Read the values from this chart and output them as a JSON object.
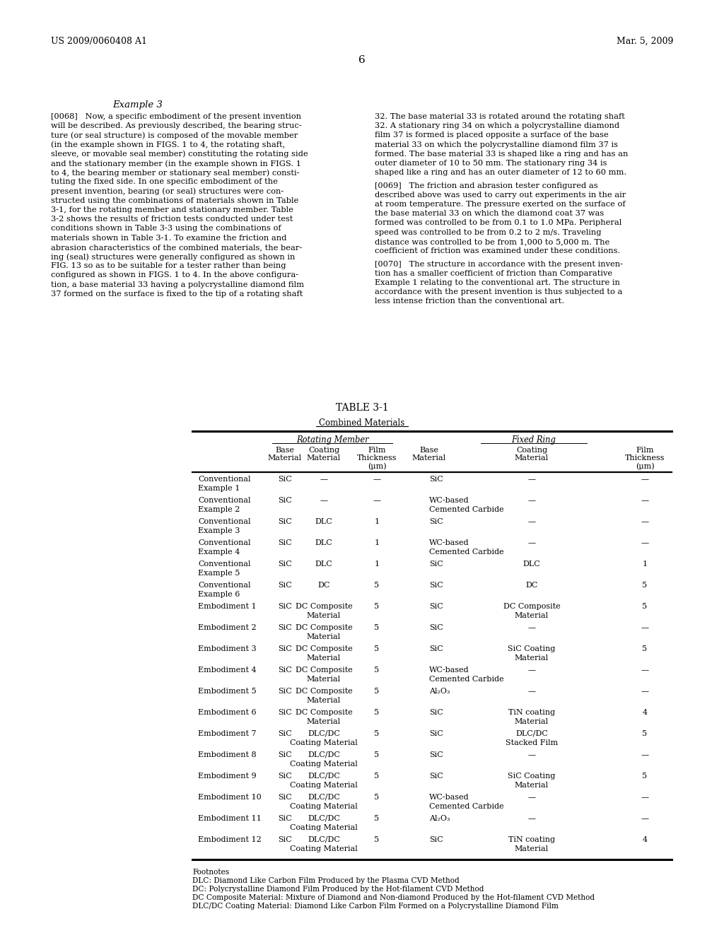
{
  "header_left": "US 2009/0060408 A1",
  "header_right": "Mar. 5, 2009",
  "page_number": "6",
  "example_title": "Example 3",
  "rows": [
    {
      "label": "Conventional\nExample 1",
      "rm_base": "SiC",
      "rm_coat": "—",
      "rm_thick": "—",
      "fr_base": "SiC",
      "fr_coat": "—",
      "fr_thick": "—"
    },
    {
      "label": "Conventional\nExample 2",
      "rm_base": "SiC",
      "rm_coat": "—",
      "rm_thick": "—",
      "fr_base": "WC-based\nCemented Carbide",
      "fr_coat": "—",
      "fr_thick": "—"
    },
    {
      "label": "Conventional\nExample 3",
      "rm_base": "SiC",
      "rm_coat": "DLC",
      "rm_thick": "1",
      "fr_base": "SiC",
      "fr_coat": "—",
      "fr_thick": "—"
    },
    {
      "label": "Conventional\nExample 4",
      "rm_base": "SiC",
      "rm_coat": "DLC",
      "rm_thick": "1",
      "fr_base": "WC-based\nCemented Carbide",
      "fr_coat": "—",
      "fr_thick": "—"
    },
    {
      "label": "Conventional\nExample 5",
      "rm_base": "SiC",
      "rm_coat": "DLC",
      "rm_thick": "1",
      "fr_base": "SiC",
      "fr_coat": "DLC",
      "fr_thick": "1"
    },
    {
      "label": "Conventional\nExample 6",
      "rm_base": "SiC",
      "rm_coat": "DC",
      "rm_thick": "5",
      "fr_base": "SiC",
      "fr_coat": "DC",
      "fr_thick": "5"
    },
    {
      "label": "Embodiment 1",
      "rm_base": "SiC",
      "rm_coat": "DC Composite\nMaterial",
      "rm_thick": "5",
      "fr_base": "SiC",
      "fr_coat": "DC Composite\nMaterial",
      "fr_thick": "5"
    },
    {
      "label": "Embodiment 2",
      "rm_base": "SiC",
      "rm_coat": "DC Composite\nMaterial",
      "rm_thick": "5",
      "fr_base": "SiC",
      "fr_coat": "—",
      "fr_thick": "—"
    },
    {
      "label": "Embodiment 3",
      "rm_base": "SiC",
      "rm_coat": "DC Composite\nMaterial",
      "rm_thick": "5",
      "fr_base": "SiC",
      "fr_coat": "SiC Coating\nMaterial",
      "fr_thick": "5"
    },
    {
      "label": "Embodiment 4",
      "rm_base": "SiC",
      "rm_coat": "DC Composite\nMaterial",
      "rm_thick": "5",
      "fr_base": "WC-based\nCemented Carbide",
      "fr_coat": "—",
      "fr_thick": "—"
    },
    {
      "label": "Embodiment 5",
      "rm_base": "SiC",
      "rm_coat": "DC Composite\nMaterial",
      "rm_thick": "5",
      "fr_base": "Al₂O₃",
      "fr_coat": "—",
      "fr_thick": "—"
    },
    {
      "label": "Embodiment 6",
      "rm_base": "SiC",
      "rm_coat": "DC Composite\nMaterial",
      "rm_thick": "5",
      "fr_base": "SiC",
      "fr_coat": "TiN coating\nMaterial",
      "fr_thick": "4"
    },
    {
      "label": "Embodiment 7",
      "rm_base": "SiC",
      "rm_coat": "DLC/DC\nCoating Material",
      "rm_thick": "5",
      "fr_base": "SiC",
      "fr_coat": "DLC/DC\nStacked Film",
      "fr_thick": "5"
    },
    {
      "label": "Embodiment 8",
      "rm_base": "SiC",
      "rm_coat": "DLC/DC\nCoating Material",
      "rm_thick": "5",
      "fr_base": "SiC",
      "fr_coat": "—",
      "fr_thick": "—"
    },
    {
      "label": "Embodiment 9",
      "rm_base": "SiC",
      "rm_coat": "DLC/DC\nCoating Material",
      "rm_thick": "5",
      "fr_base": "SiC",
      "fr_coat": "SiC Coating\nMaterial",
      "fr_thick": "5"
    },
    {
      "label": "Embodiment 10",
      "rm_base": "SiC",
      "rm_coat": "DLC/DC\nCoating Material",
      "rm_thick": "5",
      "fr_base": "WC-based\nCemented Carbide",
      "fr_coat": "—",
      "fr_thick": "—"
    },
    {
      "label": "Embodiment 11",
      "rm_base": "SiC",
      "rm_coat": "DLC/DC\nCoating Material",
      "rm_thick": "5",
      "fr_base": "Al₂O₃",
      "fr_coat": "—",
      "fr_thick": "—"
    },
    {
      "label": "Embodiment 12",
      "rm_base": "SiC",
      "rm_coat": "DLC/DC\nCoating Material",
      "rm_thick": "5",
      "fr_base": "SiC",
      "fr_coat": "TiN coating\nMaterial",
      "fr_thick": "4"
    }
  ],
  "footnotes": [
    "Footnotes",
    "DLC: Diamond Like Carbon Film Produced by the Plasma CVD Method",
    "DC: Polycrystalline Diamond Film Produced by the Hot-filament CVD Method",
    "DC Composite Material: Mixture of Diamond and Non-diamond Produced by the Hot-filament CVD Method",
    "DLC/DC Coating Material: Diamond Like Carbon Film Formed on a Polycrystalline Diamond Film"
  ]
}
